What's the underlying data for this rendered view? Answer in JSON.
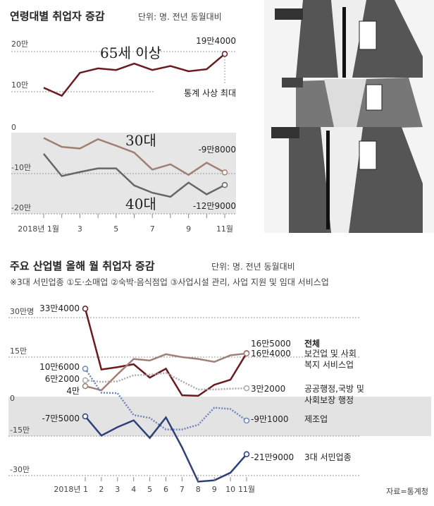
{
  "chart_data": [
    {
      "type": "line",
      "title": "연령대별 취업자 증감",
      "unit": "단위: 명. 전년 동월대비",
      "x": [
        1,
        2,
        3,
        4,
        5,
        6,
        7,
        8,
        9,
        10,
        11
      ],
      "xticks": [
        "2018년 1월",
        "3",
        "5",
        "7",
        "9",
        "11월"
      ],
      "panels": [
        {
          "yticks": [
            "20만",
            "10만"
          ],
          "ylim": [
            8,
            21
          ],
          "series": [
            {
              "name": "65세 이상",
              "color": "#6b1a1f",
              "values": [
                11.0,
                9.0,
                14.7,
                15.8,
                15.4,
                17.0,
                15.4,
                16.4,
                15.1,
                15.6,
                19.4
              ],
              "end_label": "19만4000",
              "note": "통계 사상 최대"
            }
          ]
        },
        {
          "yticks": [
            "0",
            "-10만",
            "-20만"
          ],
          "ylim": [
            -20,
            0
          ],
          "series": [
            {
              "name": "30대",
              "color": "#a08074",
              "values": [
                -1.3,
                -3.5,
                -3.9,
                -1.6,
                -3.2,
                -4.9,
                -9.1,
                -7.8,
                -10.4,
                -7.4,
                -9.8
              ],
              "end_label": "-9만8000"
            },
            {
              "name": "40대",
              "color": "#666666",
              "values": [
                -5.2,
                -10.7,
                -9.7,
                -8.8,
                -8.8,
                -13.0,
                -14.8,
                -15.8,
                -12.3,
                -15.2,
                -12.9
              ],
              "end_label": "-12만9000"
            }
          ]
        }
      ]
    },
    {
      "type": "line",
      "title": "주요 산업별 올해 월 취업자 증감",
      "unit": "단위: 명. 전년 동월대비",
      "note": "※3대 서민업종 ①도·소매업 ②숙박·음식점업 ③사업시설 관리, 사업 지원 및 임대 서비스업",
      "x": [
        1,
        2,
        3,
        4,
        5,
        6,
        7,
        8,
        9,
        10,
        11
      ],
      "xticks": [
        "2018년 1",
        "2",
        "3",
        "4",
        "5",
        "6",
        "7",
        "8",
        "9",
        "10",
        "11월"
      ],
      "yticks": [
        "30만명",
        "15만",
        "0",
        "-15만",
        "-30만"
      ],
      "ylim": [
        -30,
        30
      ],
      "series": [
        {
          "name": "전체",
          "color": "#6b1a1f",
          "dashed": false,
          "values": [
            33.4,
            10.3,
            11.2,
            12.3,
            7.2,
            10.6,
            0.5,
            0.3,
            4.5,
            6.4,
            16.5
          ],
          "start_label": "33만4000",
          "end_label": "16만5000"
        },
        {
          "name": "보건업 및 사회복지 서비스업",
          "color": "#a08074",
          "dashed": false,
          "values": [
            4.0,
            2.4,
            8.5,
            14.3,
            13.7,
            16.1,
            15.0,
            14.3,
            13.2,
            15.7,
            16.4
          ],
          "start_label": "4만",
          "end_label": "16만4000"
        },
        {
          "name": "공공행정,국방 및 사회보장 행정",
          "color": "#aaaaaa",
          "dashed": true,
          "values": [
            6.2,
            5.6,
            5.8,
            8.1,
            8.3,
            9.0,
            5.8,
            2.7,
            2.7,
            3.0,
            3.2
          ],
          "start_label": "6만2000",
          "end_label": "3만2000"
        },
        {
          "name": "제조업",
          "color": "#6f86b8",
          "dashed": true,
          "values": [
            10.6,
            1.5,
            1.3,
            -7.0,
            -8.1,
            -12.5,
            -12.5,
            -10.7,
            -4.2,
            -4.7,
            -9.1
          ],
          "start_label": "10만6000",
          "end_label": "-9만1000"
        },
        {
          "name": "3대 서민업종",
          "color": "#2f3f7a",
          "dashed": false,
          "values": [
            -7.5,
            -14.8,
            -11.6,
            -9.0,
            -15.7,
            -7.9,
            -19.3,
            -32.3,
            -31.8,
            -28.9,
            -21.9
          ],
          "start_label": "-7만5000",
          "end_label": "-21만9000"
        }
      ],
      "source": "자료=통계청"
    }
  ]
}
